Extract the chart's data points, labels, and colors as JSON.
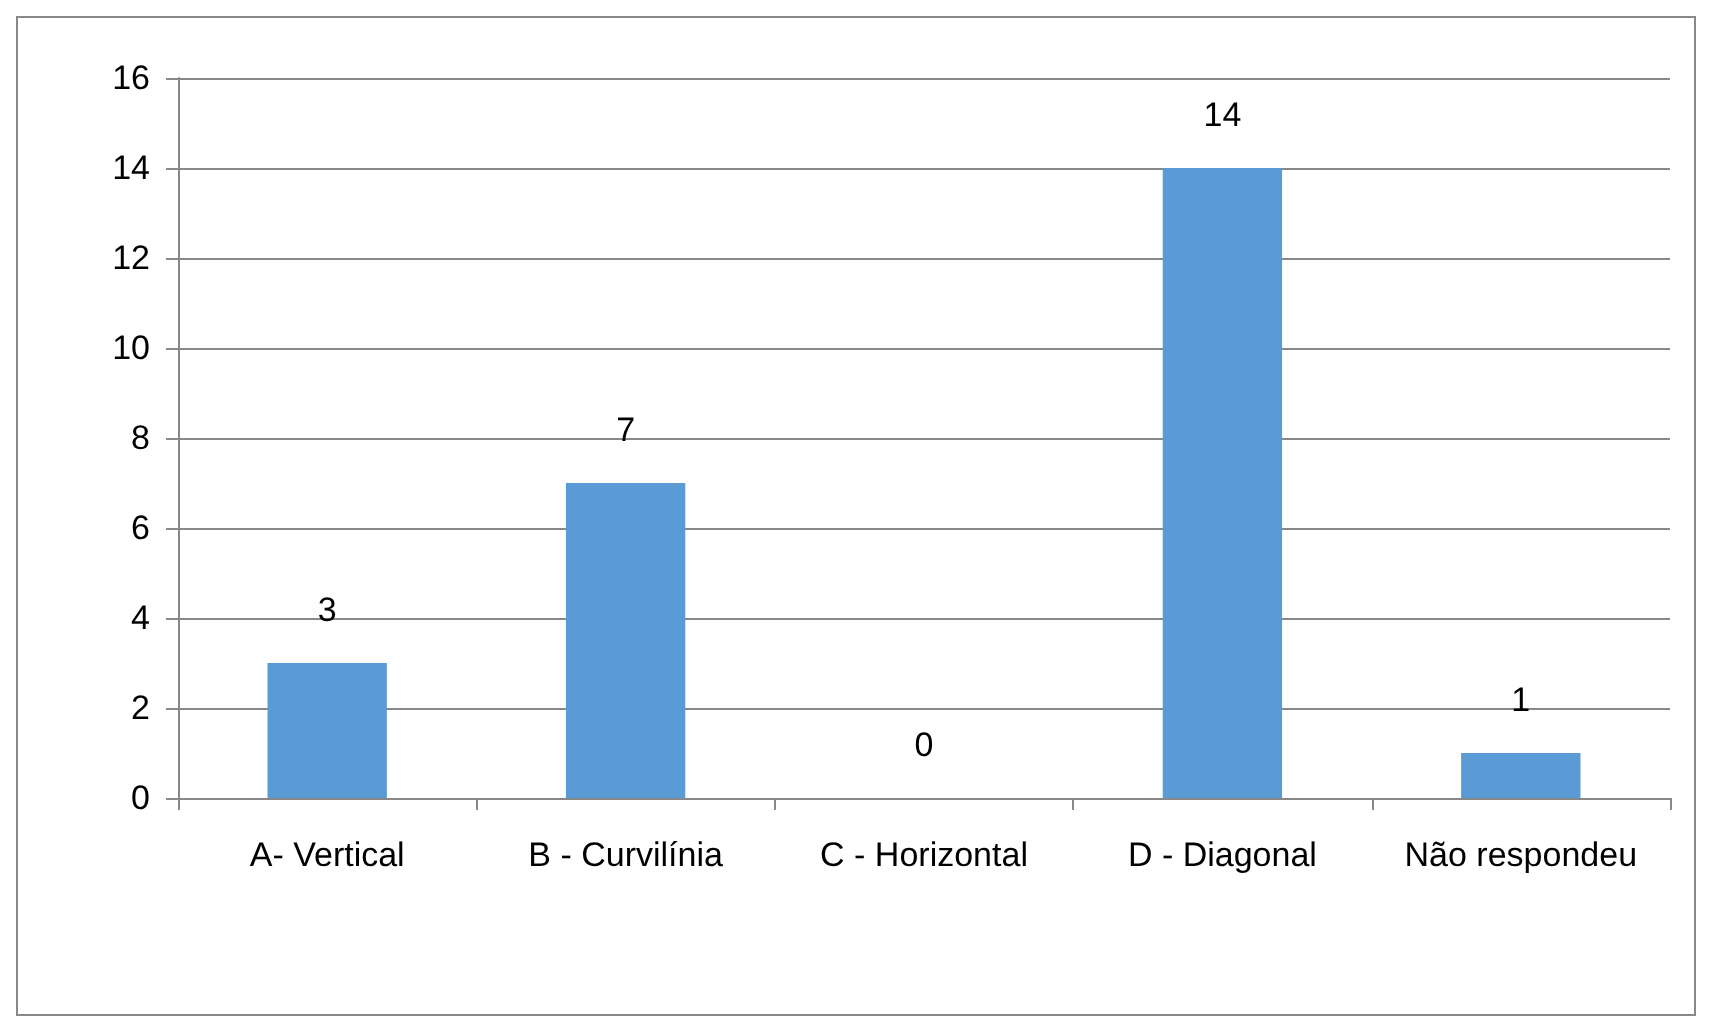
{
  "chart_data": {
    "type": "bar",
    "categories": [
      "A- Vertical",
      "B - Curvilínia",
      "C - Horizontal",
      "D - Diagonal",
      "Não respondeu"
    ],
    "values": [
      3,
      7,
      0,
      14,
      1
    ],
    "color": "#5b9bd5",
    "ylim": [
      0,
      16
    ],
    "yticks": [
      0,
      2,
      4,
      6,
      8,
      10,
      12,
      14,
      16
    ],
    "grid": "y",
    "data_labels": true
  }
}
